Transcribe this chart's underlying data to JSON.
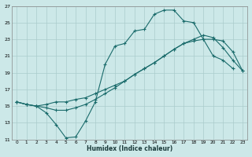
{
  "xlabel": "Humidex (Indice chaleur)",
  "background_color": "#cce8e8",
  "grid_color": "#aacccc",
  "line_color": "#1a6b6b",
  "x_all": [
    0,
    1,
    2,
    3,
    4,
    5,
    6,
    7,
    8,
    9,
    10,
    11,
    12,
    13,
    14,
    15,
    16,
    17,
    18,
    19,
    20,
    21,
    22,
    23
  ],
  "line_zigzag_x": [
    0,
    1,
    2,
    3,
    4,
    5,
    6,
    7,
    8,
    9,
    10,
    11,
    12,
    13,
    14,
    15,
    16,
    17,
    18,
    19,
    20,
    21,
    22
  ],
  "line_zigzag_y": [
    15.5,
    15.2,
    15.0,
    14.2,
    12.8,
    11.2,
    11.3,
    13.2,
    15.5,
    20.0,
    22.2,
    22.5,
    24.0,
    24.2,
    26.0,
    26.5,
    26.5,
    25.2,
    25.0,
    23.0,
    21.0,
    20.5,
    19.5
  ],
  "line_upper_x": [
    0,
    1,
    2,
    3,
    4,
    5,
    6,
    7,
    8,
    9,
    10,
    11,
    12,
    13,
    14,
    15,
    16,
    17,
    18,
    19,
    20,
    21,
    22,
    23
  ],
  "line_upper_y": [
    15.5,
    15.2,
    15.0,
    15.2,
    15.5,
    15.5,
    15.8,
    16.0,
    16.5,
    17.0,
    17.5,
    18.0,
    18.8,
    19.5,
    20.2,
    21.0,
    21.8,
    22.5,
    22.8,
    23.0,
    23.0,
    22.8,
    21.5,
    19.2
  ],
  "line_lower_x": [
    0,
    1,
    2,
    3,
    4,
    5,
    6,
    7,
    8,
    9,
    10,
    11,
    12,
    13,
    14,
    15,
    16,
    17,
    18,
    19,
    20,
    21,
    22,
    23
  ],
  "line_lower_y": [
    15.5,
    15.2,
    15.0,
    14.8,
    14.5,
    14.5,
    14.8,
    15.2,
    15.8,
    16.5,
    17.2,
    18.0,
    18.8,
    19.5,
    20.2,
    21.0,
    21.8,
    22.5,
    23.0,
    23.5,
    23.2,
    22.0,
    20.5,
    19.2
  ],
  "ylim": [
    11,
    27
  ],
  "xlim": [
    -0.5,
    23.5
  ],
  "yticks": [
    11,
    13,
    15,
    17,
    19,
    21,
    23,
    25,
    27
  ],
  "xticks": [
    0,
    1,
    2,
    3,
    4,
    5,
    6,
    7,
    8,
    9,
    10,
    11,
    12,
    13,
    14,
    15,
    16,
    17,
    18,
    19,
    20,
    21,
    22,
    23
  ]
}
